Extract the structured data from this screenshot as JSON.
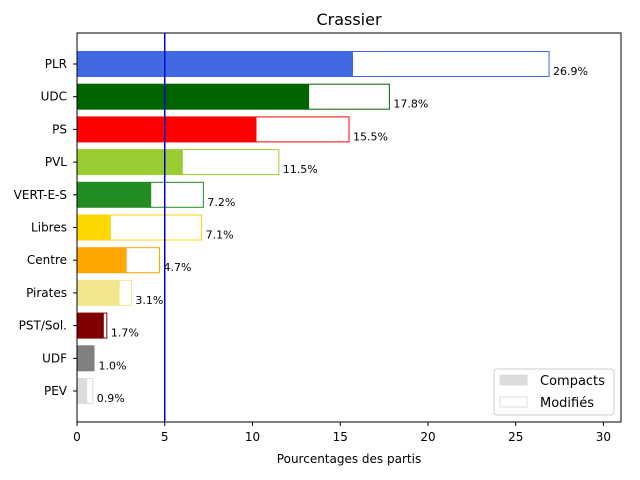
{
  "chart_data": {
    "type": "bar",
    "orientation": "horizontal",
    "title": "Crassier",
    "xlabel": "Pourcentages des partis",
    "ylabel": "",
    "xlim": [
      0,
      31
    ],
    "xticks": [
      0,
      5,
      10,
      15,
      20,
      25,
      30
    ],
    "reference_line": {
      "x": 5,
      "color": "#0000cc"
    },
    "categories": [
      "PLR",
      "UDC",
      "PS",
      "PVL",
      "VERT-E-S",
      "Libres",
      "Centre",
      "Pirates",
      "PST/Sol.",
      "UDF",
      "PEV"
    ],
    "colors": [
      "#4169e1",
      "#006400",
      "#ff0000",
      "#9acd32",
      "#228b22",
      "#ffd700",
      "#ffa500",
      "#f0e68c",
      "#800000",
      "#808080",
      "#dcdcdc"
    ],
    "series": [
      {
        "name": "Compacts",
        "values": [
          15.7,
          13.2,
          10.2,
          6.0,
          4.2,
          1.9,
          2.8,
          2.4,
          1.5,
          1.0,
          0.55
        ]
      },
      {
        "name": "Modifiés",
        "values": [
          11.2,
          4.6,
          5.3,
          5.5,
          3.0,
          5.2,
          1.9,
          0.7,
          0.2,
          0.0,
          0.35
        ]
      }
    ],
    "totals_labels": [
      "26.9%",
      "17.8%",
      "15.5%",
      "11.5%",
      "7.2%",
      "7.1%",
      "4.7%",
      "3.1%",
      "1.7%",
      "1.0%",
      "0.9%"
    ],
    "totals": [
      26.9,
      17.8,
      15.5,
      11.5,
      7.2,
      7.1,
      4.7,
      3.1,
      1.7,
      1.0,
      0.9
    ],
    "legend": {
      "placement": "lower-right",
      "entries": [
        {
          "label": "Compacts",
          "fill": "#dcdcdc",
          "stroke": "#dcdcdc"
        },
        {
          "label": "Modifiés",
          "fill": "#ffffff",
          "stroke": "#dcdcdc"
        }
      ]
    }
  }
}
